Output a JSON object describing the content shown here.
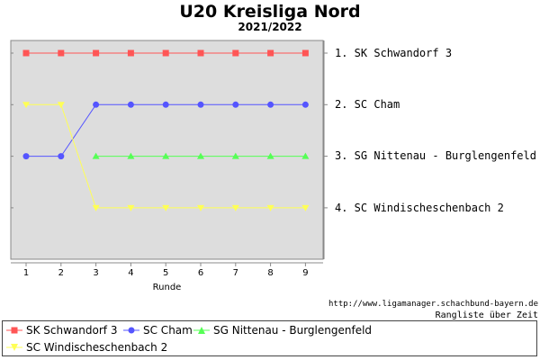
{
  "chart_data": {
    "type": "line",
    "title": "U20 Kreisliga Nord",
    "subtitle": "2021/2022",
    "xlabel": "Runde",
    "categories": [
      "1",
      "2",
      "3",
      "4",
      "5",
      "6",
      "7",
      "8",
      "9"
    ],
    "ylim": [
      0.5,
      5
    ],
    "y_inverted": true,
    "rank_labels": [
      "1. SK Schwandorf 3",
      "2. SC Cham",
      "3. SG Nittenau - Burglengenfeld",
      "4. SC Windischeschenbach 2"
    ],
    "series": [
      {
        "name": "SK Schwandorf 3",
        "marker": "square",
        "color": "#ff5555",
        "values": [
          1,
          1,
          1,
          1,
          1,
          1,
          1,
          1,
          1
        ]
      },
      {
        "name": "SC Cham",
        "marker": "circle",
        "color": "#5555ff",
        "values": [
          3,
          3,
          2,
          2,
          2,
          2,
          2,
          2,
          2
        ]
      },
      {
        "name": "SG Nittenau - Burglengenfeld",
        "marker": "triangle-up",
        "color": "#55ff55",
        "values": [
          null,
          null,
          3,
          3,
          3,
          3,
          3,
          3,
          3
        ]
      },
      {
        "name": "SC Windischeschenbach 2",
        "marker": "triangle-down",
        "color": "#ffff55",
        "values": [
          2,
          2,
          4,
          4,
          4,
          4,
          4,
          4,
          4
        ]
      }
    ],
    "grid": false,
    "plot_background": "#dddddd",
    "legend_position": "bottom",
    "source": "http://www.ligamanager.schachbund-bayern.de",
    "caption": "Rangliste über Zeit"
  }
}
